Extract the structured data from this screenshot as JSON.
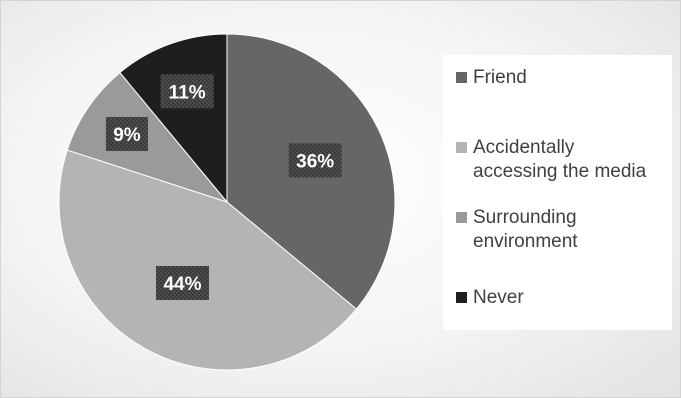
{
  "chart_data": {
    "type": "pie",
    "labels": [
      "Friend",
      "Accidentally accessing the media",
      "Surrounding environment",
      "Never"
    ],
    "legend_lines": [
      [
        "Friend"
      ],
      [
        "Accidentally",
        "accessing the media"
      ],
      [
        "Surrounding",
        "environment"
      ],
      [
        "Never"
      ]
    ],
    "values": [
      36,
      44,
      9,
      11
    ],
    "data_labels": [
      "36%",
      "44%",
      "9%",
      "11%"
    ],
    "colors": [
      "#666666",
      "#b4b4b4",
      "#9a9a9a",
      "#1e1e1e"
    ],
    "legend_position": "right",
    "start_angle": "12 o'clock",
    "direction": "clockwise"
  }
}
